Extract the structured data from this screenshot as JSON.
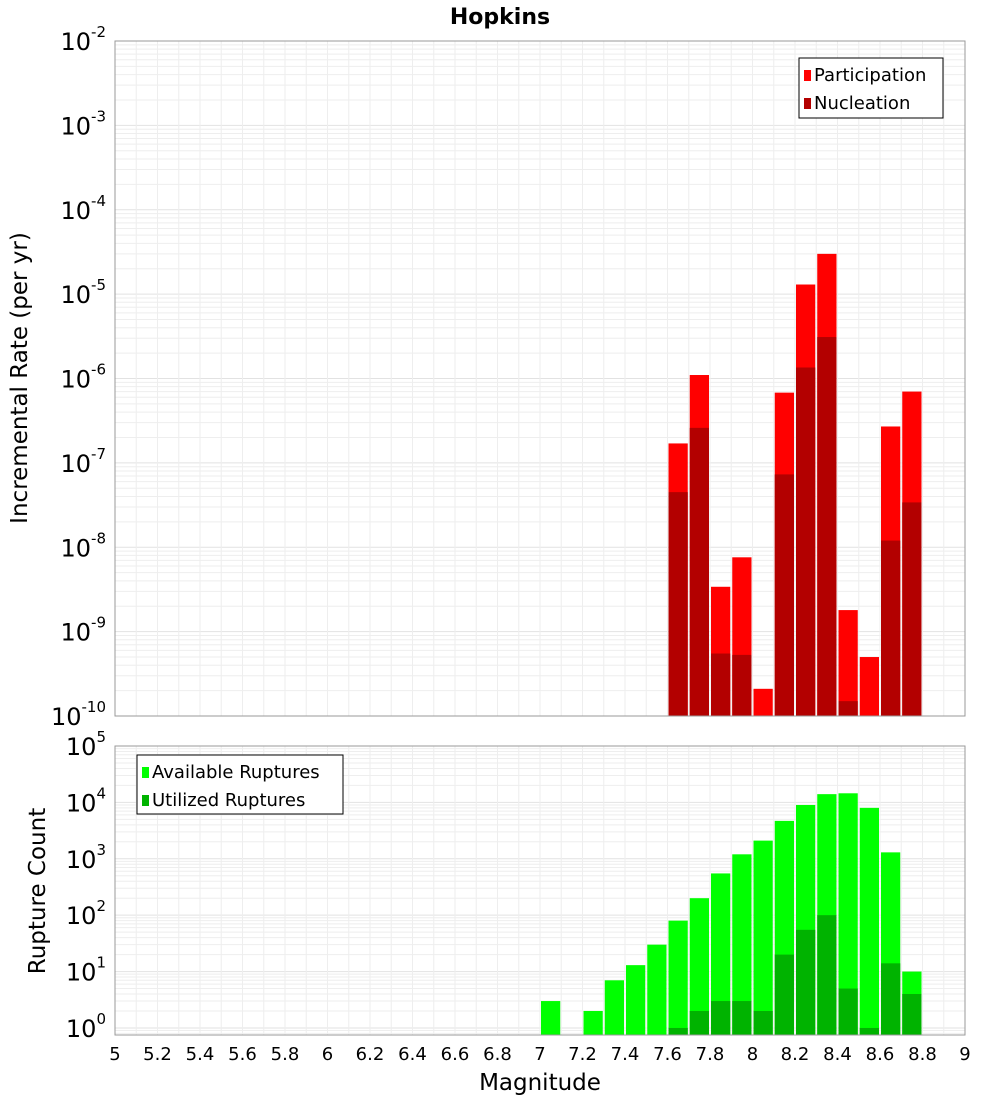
{
  "title": "Hopkins",
  "chart_data": [
    {
      "type": "bar",
      "xlabel": "Magnitude",
      "ylabel": "Incremental Rate (per yr)",
      "y_scale": "log",
      "xlim": [
        5,
        9
      ],
      "ylim": [
        1e-10,
        0.01
      ],
      "grid": true,
      "legend_position": "top-right",
      "y_tick_labels": [
        {
          "base": "10",
          "exp": "-10",
          "value": 1e-10
        },
        {
          "base": "10",
          "exp": "-9",
          "value": 1e-09
        },
        {
          "base": "10",
          "exp": "-8",
          "value": 1e-08
        },
        {
          "base": "10",
          "exp": "-7",
          "value": 1e-07
        },
        {
          "base": "10",
          "exp": "-6",
          "value": 1e-06
        },
        {
          "base": "10",
          "exp": "-5",
          "value": 1e-05
        },
        {
          "base": "10",
          "exp": "-4",
          "value": 0.0001
        },
        {
          "base": "10",
          "exp": "-3",
          "value": 0.001
        },
        {
          "base": "10",
          "exp": "-2",
          "value": 0.01
        }
      ],
      "series": [
        {
          "name": "Participation",
          "color": "#ff0000",
          "points": [
            {
              "x": 7.65,
              "y": 1.7e-07
            },
            {
              "x": 7.75,
              "y": 1.1e-06
            },
            {
              "x": 7.85,
              "y": 3.4e-09
            },
            {
              "x": 7.95,
              "y": 7.6e-09
            },
            {
              "x": 8.05,
              "y": 2.1e-10
            },
            {
              "x": 8.15,
              "y": 6.8e-07
            },
            {
              "x": 8.25,
              "y": 1.3e-05
            },
            {
              "x": 8.35,
              "y": 3e-05
            },
            {
              "x": 8.45,
              "y": 1.8e-09
            },
            {
              "x": 8.55,
              "y": 5e-10
            },
            {
              "x": 8.65,
              "y": 2.7e-07
            },
            {
              "x": 8.75,
              "y": 7e-07
            }
          ]
        },
        {
          "name": "Nucleation",
          "color": "#b30000",
          "points": [
            {
              "x": 7.65,
              "y": 4.5e-08
            },
            {
              "x": 7.75,
              "y": 2.6e-07
            },
            {
              "x": 7.85,
              "y": 5.5e-10
            },
            {
              "x": 7.95,
              "y": 5.3e-10
            },
            {
              "x": 8.15,
              "y": 7.3e-08
            },
            {
              "x": 8.25,
              "y": 1.35e-06
            },
            {
              "x": 8.35,
              "y": 3.1e-06
            },
            {
              "x": 8.45,
              "y": 1.5e-10
            },
            {
              "x": 8.65,
              "y": 1.2e-08
            },
            {
              "x": 8.75,
              "y": 3.4e-08
            }
          ]
        }
      ]
    },
    {
      "type": "bar",
      "xlabel": "Magnitude",
      "ylabel": "Rupture Count",
      "y_scale": "log",
      "xlim": [
        5,
        9
      ],
      "ylim": [
        0.75,
        100000.0
      ],
      "grid": true,
      "legend_position": "top-left",
      "x_ticks": [
        "5",
        "5.2",
        "5.4",
        "5.6",
        "5.8",
        "6",
        "6.2",
        "6.4",
        "6.6",
        "6.8",
        "7",
        "7.2",
        "7.4",
        "7.6",
        "7.8",
        "8",
        "8.2",
        "8.4",
        "8.6",
        "8.8",
        "9"
      ],
      "y_tick_labels": [
        {
          "base": "10",
          "exp": "0",
          "value": 1
        },
        {
          "base": "10",
          "exp": "1",
          "value": 10
        },
        {
          "base": "10",
          "exp": "2",
          "value": 100
        },
        {
          "base": "10",
          "exp": "3",
          "value": 1000
        },
        {
          "base": "10",
          "exp": "4",
          "value": 10000
        },
        {
          "base": "10",
          "exp": "5",
          "value": 100000
        }
      ],
      "series": [
        {
          "name": "Available Ruptures",
          "color": "#00ff00",
          "points": [
            {
              "x": 7.05,
              "y": 3
            },
            {
              "x": 7.25,
              "y": 2
            },
            {
              "x": 7.35,
              "y": 7
            },
            {
              "x": 7.45,
              "y": 13
            },
            {
              "x": 7.55,
              "y": 30
            },
            {
              "x": 7.65,
              "y": 80
            },
            {
              "x": 7.75,
              "y": 200
            },
            {
              "x": 7.85,
              "y": 550
            },
            {
              "x": 7.95,
              "y": 1200
            },
            {
              "x": 8.05,
              "y": 2100
            },
            {
              "x": 8.15,
              "y": 4700
            },
            {
              "x": 8.25,
              "y": 9000
            },
            {
              "x": 8.35,
              "y": 14000
            },
            {
              "x": 8.45,
              "y": 14500
            },
            {
              "x": 8.55,
              "y": 8000
            },
            {
              "x": 8.65,
              "y": 1300
            },
            {
              "x": 8.75,
              "y": 10
            }
          ]
        },
        {
          "name": "Utilized Ruptures",
          "color": "#00b300",
          "points": [
            {
              "x": 7.65,
              "y": 1
            },
            {
              "x": 7.75,
              "y": 2
            },
            {
              "x": 7.85,
              "y": 3
            },
            {
              "x": 7.95,
              "y": 3
            },
            {
              "x": 8.05,
              "y": 2
            },
            {
              "x": 8.15,
              "y": 20
            },
            {
              "x": 8.25,
              "y": 55
            },
            {
              "x": 8.35,
              "y": 100
            },
            {
              "x": 8.45,
              "y": 5
            },
            {
              "x": 8.55,
              "y": 1
            },
            {
              "x": 8.65,
              "y": 14
            },
            {
              "x": 8.75,
              "y": 4
            }
          ]
        }
      ]
    }
  ]
}
